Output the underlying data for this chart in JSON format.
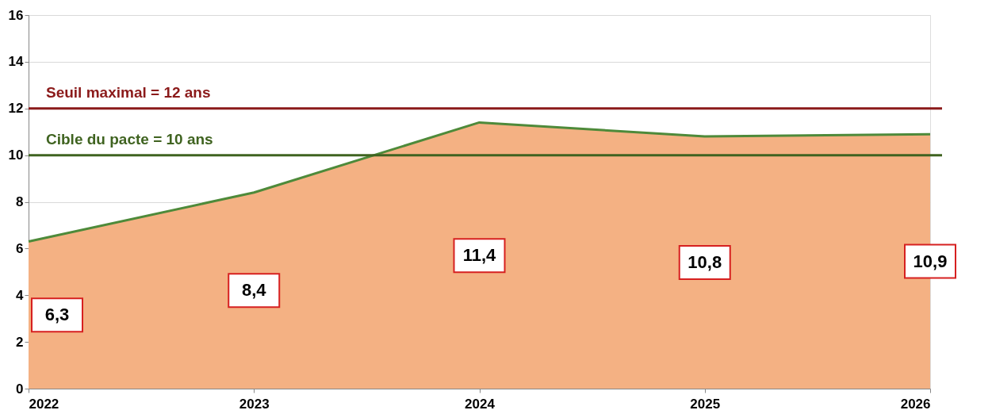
{
  "chart_data": {
    "type": "area",
    "categories": [
      "2022",
      "2023",
      "2024",
      "2025",
      "2026"
    ],
    "series": [
      {
        "color": "#f4b183",
        "values": [
          6.3,
          8.4,
          11.4,
          10.8,
          10.9
        ]
      },
      {
        "type": "line",
        "color": "#4e8a3a",
        "values": [
          6.3,
          8.4,
          11.4,
          10.8,
          10.9
        ]
      }
    ],
    "value_labels": [
      "6,3",
      "8,4",
      "11,4",
      "10,8",
      "10,9"
    ],
    "ylim": [
      0,
      16
    ],
    "yticks": [
      0,
      2,
      4,
      6,
      8,
      10,
      12,
      14,
      16
    ],
    "grid": "y",
    "ref_lines": [
      {
        "axis": "y",
        "value": 12,
        "label": "Seuil maximal = 12 ans",
        "color": "#8b1a1a"
      },
      {
        "axis": "y",
        "value": 10,
        "label": "Cible du pacte = 10 ans",
        "color": "#3f6320"
      }
    ]
  }
}
